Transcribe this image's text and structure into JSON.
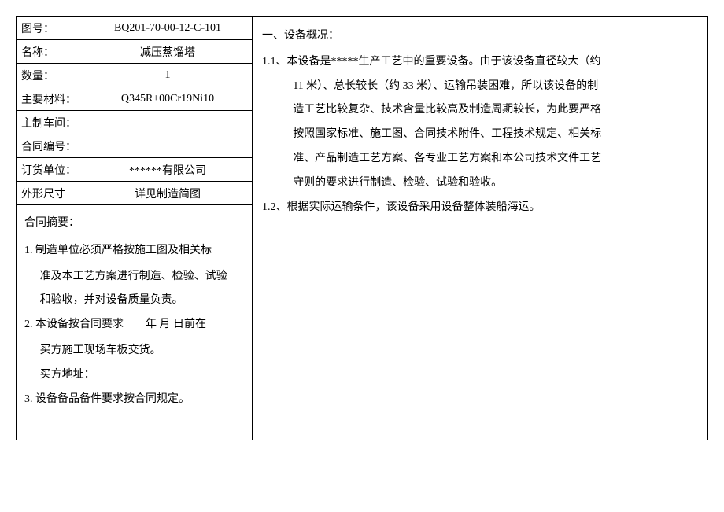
{
  "leftTable": {
    "rows": [
      {
        "label": "图号：",
        "value": "BQ201-70-00-12-C-101"
      },
      {
        "label": "名称：",
        "value": "减压蒸馏塔"
      },
      {
        "label": "数量：",
        "value": "1"
      },
      {
        "label": "主要材料：",
        "value": "Q345R+00Cr19Ni10"
      },
      {
        "label": "主制车间：",
        "value": ""
      },
      {
        "label": "合同编号：",
        "value": ""
      },
      {
        "label": "订货单位：",
        "value": "******有限公司"
      },
      {
        "label": "外形尺寸",
        "value": "详见制造简图"
      }
    ]
  },
  "contract": {
    "title": "合同摘要：",
    "item1a": "1. 制造单位必须严格按施工图及相关标",
    "item1b": "准及本工艺方案进行制造、检验、试验",
    "item1c": "和验收，并对设备质量负责。",
    "item2a": "2. 本设备按合同要求　　年  月  日前在",
    "item2b": "买方施工现场车板交货。",
    "item2c": "买方地址：",
    "item3": "3. 设备备品备件要求按合同规定。"
  },
  "right": {
    "sectionTitle": "一、设备概况：",
    "p1_line1": "1.1、本设备是*****生产工艺中的重要设备。由于该设备直径较大（约",
    "p1_line2": "11 米）、总长较长（约 33 米）、运输吊装困难，所以该设备的制",
    "p1_line3": "造工艺比较复杂、技术含量比较高及制造周期较长，为此要严格",
    "p1_line4": "按照国家标准、施工图、合同技术附件、工程技术规定、相关标",
    "p1_line5": "准、产品制造工艺方案、各专业工艺方案和本公司技术文件工艺",
    "p1_line6": "守则的要求进行制造、检验、试验和验收。",
    "p2": "1.2、根据实际运输条件，该设备采用设备整体装船海运。"
  }
}
